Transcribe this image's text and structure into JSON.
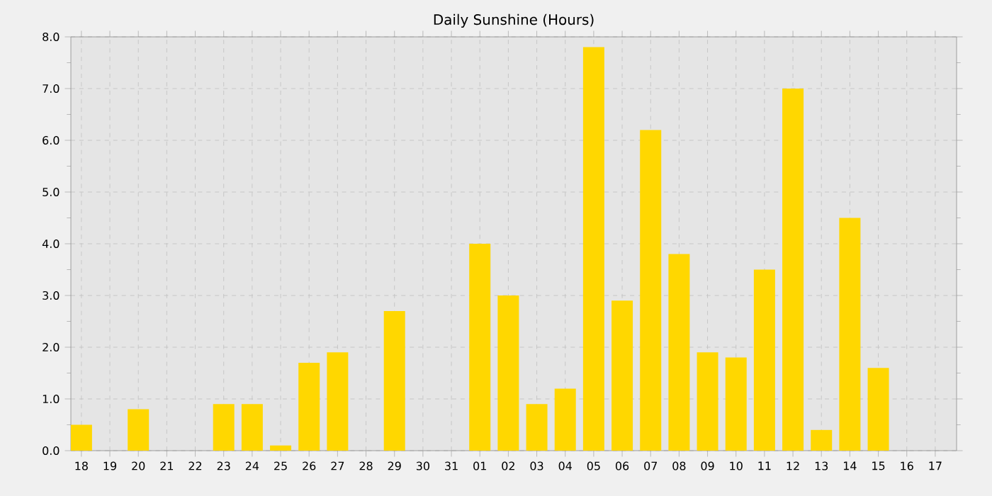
{
  "chart_data": {
    "type": "bar",
    "title": "Daily Sunshine (Hours)",
    "categories": [
      "18",
      "19",
      "20",
      "21",
      "22",
      "23",
      "24",
      "25",
      "26",
      "27",
      "28",
      "29",
      "30",
      "31",
      "01",
      "02",
      "03",
      "04",
      "05",
      "06",
      "07",
      "08",
      "09",
      "10",
      "11",
      "12",
      "13",
      "14",
      "15",
      "16",
      "17"
    ],
    "values": [
      0.5,
      0,
      0.8,
      0,
      0,
      0.9,
      0.9,
      0.1,
      1.7,
      1.9,
      0,
      2.7,
      0,
      0,
      4.0,
      3.0,
      0.9,
      1.2,
      7.8,
      2.9,
      6.2,
      3.8,
      1.9,
      1.8,
      3.5,
      7.0,
      0.4,
      4.5,
      1.6,
      0,
      0
    ],
    "color": "#ffd700",
    "ylim": [
      0,
      8
    ],
    "yticks": [
      {
        "value": 0,
        "label": "0.0"
      },
      {
        "value": 1,
        "label": "1.0"
      },
      {
        "value": 2,
        "label": "2.0"
      },
      {
        "value": 3,
        "label": "3.0"
      },
      {
        "value": 4,
        "label": "4.0"
      },
      {
        "value": 5,
        "label": "5.0"
      },
      {
        "value": 6,
        "label": "6.0"
      },
      {
        "value": 7,
        "label": "7.0"
      },
      {
        "value": 8,
        "label": "8.0"
      }
    ],
    "grid": true
  }
}
